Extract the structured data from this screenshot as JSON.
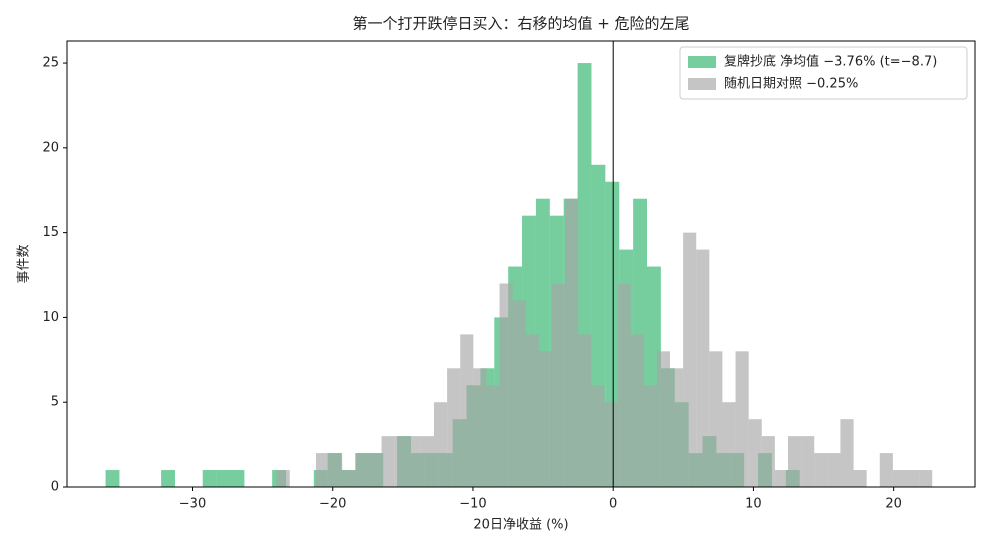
{
  "chart_data": {
    "type": "histogram",
    "title": "第一个打开跌停日买入：右移的均值 + 危险的左尾",
    "xlabel": "20日净收益 (%)",
    "ylabel": "事件数",
    "xlim": [
      -38.95,
      25.8
    ],
    "ylim": [
      0,
      26.3
    ],
    "xticks": [
      {
        "value": -30,
        "label": "−30"
      },
      {
        "value": -20,
        "label": "−20"
      },
      {
        "value": -10,
        "label": "−10"
      },
      0,
      10,
      20
    ],
    "yticks": [
      0,
      5,
      10,
      15,
      20,
      25
    ],
    "vline": 0,
    "legend": "upper right",
    "series": [
      {
        "name": "复牌抄底 净均值 −3.76% (t=−8.7)",
        "color": "#2db36b",
        "bins": [
          -36.2,
          -35.21,
          -34.22,
          -33.23,
          -32.24,
          -31.25,
          -30.26,
          -29.27,
          -28.28,
          -27.29,
          -26.3,
          -25.31,
          -24.32,
          -23.33,
          -22.34,
          -21.35,
          -20.36,
          -19.37,
          -18.38,
          -17.39,
          -16.4,
          -15.41,
          -14.42,
          -13.43,
          -12.44,
          -11.45,
          -10.46,
          -9.47,
          -8.48,
          -7.49,
          -6.5,
          -5.51,
          -4.52,
          -3.53,
          -2.54,
          -1.55,
          -0.56,
          0.43,
          1.42,
          2.41,
          3.4,
          4.39,
          5.38,
          6.37,
          7.36,
          8.35,
          9.34,
          10.33,
          11.32,
          12.31,
          13.3
        ],
        "values": [
          1,
          0,
          0,
          0,
          1,
          0,
          0,
          1,
          1,
          1,
          0,
          0,
          1,
          0,
          0,
          1,
          2,
          1,
          2,
          2,
          0,
          3,
          2,
          2,
          2,
          4,
          6,
          7,
          10,
          13,
          16,
          17,
          16,
          17,
          25,
          19,
          18,
          14,
          17,
          13,
          7,
          5,
          2,
          3,
          2,
          2,
          0,
          2,
          0,
          1
        ]
      },
      {
        "name": "随机日期对照 −0.25%",
        "color": "#a6a6a6",
        "bins": [
          -24,
          -23.065,
          -22.13,
          -21.195,
          -20.26,
          -19.325,
          -18.39,
          -17.455,
          -16.52,
          -15.585,
          -14.65,
          -13.715,
          -12.78,
          -11.845,
          -10.91,
          -9.975,
          -9.04,
          -8.105,
          -7.17,
          -6.235,
          -5.3,
          -4.365,
          -3.43,
          -2.495,
          -1.56,
          -0.625,
          0.31,
          1.245,
          2.18,
          3.115,
          4.05,
          4.985,
          5.92,
          6.855,
          7.79,
          8.725,
          9.66,
          10.595,
          11.53,
          12.465,
          13.4,
          14.335,
          15.27,
          16.205,
          17.14,
          18.075,
          19.01,
          19.945,
          20.88,
          21.815,
          22.75
        ],
        "values": [
          1,
          0,
          0,
          2,
          2,
          1,
          2,
          2,
          3,
          3,
          3,
          3,
          5,
          7,
          9,
          7,
          6,
          12,
          11,
          9,
          8,
          12,
          17,
          9,
          6,
          5,
          12,
          9,
          6,
          8,
          7,
          15,
          14,
          8,
          5,
          8,
          4,
          3,
          1,
          3,
          3,
          2,
          2,
          4,
          1,
          0,
          2,
          1,
          1,
          1
        ]
      }
    ]
  }
}
